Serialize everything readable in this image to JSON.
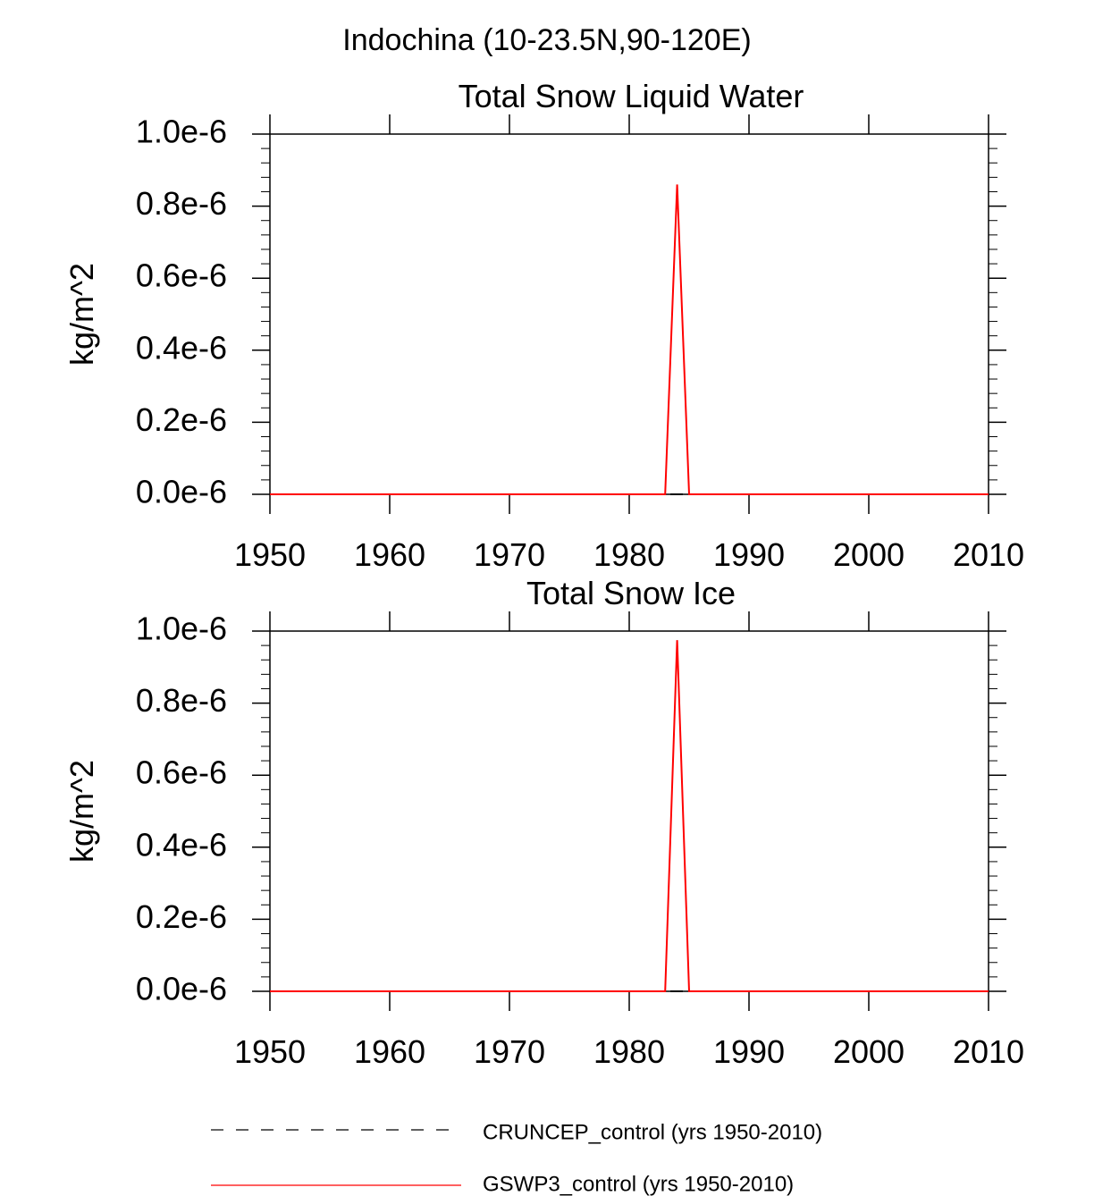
{
  "figure": {
    "title": "Indochina (10-23.5N,90-120E)"
  },
  "legend": {
    "entries": [
      {
        "label": "CRUNCEP_control (yrs 1950-2010)",
        "color": "#000000",
        "style": "dashed"
      },
      {
        "label": "GSWP3_control (yrs 1950-2010)",
        "color": "#ff0000",
        "style": "solid"
      }
    ]
  },
  "chart_data": [
    {
      "type": "line",
      "title": "Total Snow Liquid Water",
      "xlabel": "",
      "ylabel": "kg/m^2",
      "xlim": [
        1950,
        2010
      ],
      "ylim": [
        0,
        1e-06
      ],
      "x_ticks": [
        1950,
        1960,
        1970,
        1980,
        1990,
        2000,
        2010
      ],
      "x_tick_labels": [
        "1950",
        "1960",
        "1970",
        "1980",
        "1990",
        "2000",
        "2010"
      ],
      "y_ticks": [
        0,
        2e-07,
        4e-07,
        6e-07,
        8e-07,
        1e-06
      ],
      "y_tick_labels": [
        "0.0e-6",
        "0.2e-6",
        "0.4e-6",
        "0.6e-6",
        "0.8e-6",
        "1.0e-6"
      ],
      "grid": false,
      "series": [
        {
          "name": "CRUNCEP_control (yrs 1950-2010)",
          "color": "#000000",
          "dash": true,
          "x": [
            1950,
            2010
          ],
          "y": [
            0,
            0
          ]
        },
        {
          "name": "GSWP3_control (yrs 1950-2010)",
          "color": "#ff0000",
          "dash": false,
          "x": [
            1950,
            1983,
            1984,
            1985,
            2010
          ],
          "y": [
            0,
            0,
            8.6e-07,
            0,
            0
          ]
        }
      ]
    },
    {
      "type": "line",
      "title": "Total Snow Ice",
      "xlabel": "",
      "ylabel": "kg/m^2",
      "xlim": [
        1950,
        2010
      ],
      "ylim": [
        0,
        1e-06
      ],
      "x_ticks": [
        1950,
        1960,
        1970,
        1980,
        1990,
        2000,
        2010
      ],
      "x_tick_labels": [
        "1950",
        "1960",
        "1970",
        "1980",
        "1990",
        "2000",
        "2010"
      ],
      "y_ticks": [
        0,
        2e-07,
        4e-07,
        6e-07,
        8e-07,
        1e-06
      ],
      "y_tick_labels": [
        "0.0e-6",
        "0.2e-6",
        "0.4e-6",
        "0.6e-6",
        "0.8e-6",
        "1.0e-6"
      ],
      "grid": false,
      "series": [
        {
          "name": "CRUNCEP_control (yrs 1950-2010)",
          "color": "#000000",
          "dash": true,
          "x": [
            1950,
            2010
          ],
          "y": [
            0,
            0
          ]
        },
        {
          "name": "GSWP3_control (yrs 1950-2010)",
          "color": "#ff0000",
          "dash": false,
          "x": [
            1950,
            1983,
            1984,
            1985,
            2010
          ],
          "y": [
            0,
            0,
            9.75e-07,
            0,
            0
          ]
        }
      ]
    }
  ]
}
